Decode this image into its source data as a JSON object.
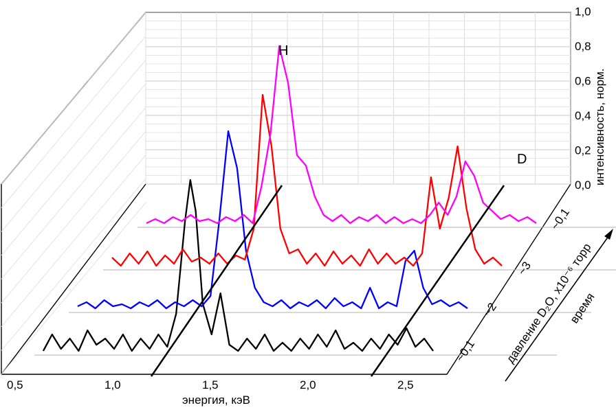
{
  "chart_data": {
    "type": "line",
    "subtype": "3d-waterfall",
    "xlabel": "энергия, кэВ",
    "x_ticks": [
      "0,5",
      "1,0",
      "1,5",
      "2,0",
      "2,5"
    ],
    "xlim": [
      0.5,
      2.75
    ],
    "zlabel": "интенсивность, норм.",
    "z_ticks": [
      "0,0",
      "0,2",
      "0,4",
      "0,6",
      "0,8",
      "1,0"
    ],
    "zlim": [
      0.0,
      1.0
    ],
    "depth_label": "давление D₂O, x10⁻⁶ торр",
    "depth_ticks": [
      "~0,1",
      "~2",
      "~3",
      "~0,1"
    ],
    "depth_arrow_label": "время",
    "grid": true,
    "annotations": [
      {
        "text": "H",
        "x": 1.56,
        "series": 3
      },
      {
        "text": "D",
        "x": 2.6,
        "series": 3
      }
    ],
    "series": [
      {
        "color": "#000000",
        "points": [
          [
            0.55,
            0.02
          ],
          [
            0.6,
            0.1
          ],
          [
            0.65,
            0.03
          ],
          [
            0.7,
            0.08
          ],
          [
            0.75,
            0.02
          ],
          [
            0.8,
            0.12
          ],
          [
            0.85,
            0.05
          ],
          [
            0.9,
            0.08
          ],
          [
            0.95,
            0.03
          ],
          [
            1.0,
            0.1
          ],
          [
            1.05,
            0.02
          ],
          [
            1.1,
            0.08
          ],
          [
            1.15,
            0.03
          ],
          [
            1.2,
            0.1
          ],
          [
            1.25,
            0.04
          ],
          [
            1.3,
            0.2
          ],
          [
            1.35,
            0.65
          ],
          [
            1.38,
            0.85
          ],
          [
            1.41,
            0.7
          ],
          [
            1.45,
            0.25
          ],
          [
            1.5,
            0.1
          ],
          [
            1.55,
            0.3
          ],
          [
            1.6,
            0.05
          ],
          [
            1.65,
            0.02
          ],
          [
            1.7,
            0.08
          ],
          [
            1.75,
            0.03
          ],
          [
            1.8,
            0.1
          ],
          [
            1.85,
            0.02
          ],
          [
            1.9,
            0.06
          ],
          [
            1.95,
            0.02
          ],
          [
            2.0,
            0.08
          ],
          [
            2.05,
            0.03
          ],
          [
            2.1,
            0.1
          ],
          [
            2.15,
            0.04
          ],
          [
            2.2,
            0.12
          ],
          [
            2.25,
            0.03
          ],
          [
            2.3,
            0.06
          ],
          [
            2.35,
            0.02
          ],
          [
            2.4,
            0.08
          ],
          [
            2.45,
            0.03
          ],
          [
            2.5,
            0.1
          ],
          [
            2.55,
            0.05
          ],
          [
            2.6,
            0.13
          ],
          [
            2.65,
            0.04
          ],
          [
            2.7,
            0.08
          ],
          [
            2.75,
            0.02
          ]
        ]
      },
      {
        "color": "#0000ff",
        "points": [
          [
            0.55,
            0.03
          ],
          [
            0.6,
            0.05
          ],
          [
            0.65,
            0.02
          ],
          [
            0.7,
            0.06
          ],
          [
            0.75,
            0.03
          ],
          [
            0.8,
            0.04
          ],
          [
            0.85,
            0.02
          ],
          [
            0.9,
            0.05
          ],
          [
            0.95,
            0.03
          ],
          [
            1.0,
            0.06
          ],
          [
            1.05,
            0.02
          ],
          [
            1.1,
            0.05
          ],
          [
            1.15,
            0.03
          ],
          [
            1.2,
            0.06
          ],
          [
            1.25,
            0.03
          ],
          [
            1.3,
            0.08
          ],
          [
            1.35,
            0.45
          ],
          [
            1.4,
            0.88
          ],
          [
            1.45,
            0.7
          ],
          [
            1.5,
            0.3
          ],
          [
            1.55,
            0.12
          ],
          [
            1.6,
            0.05
          ],
          [
            1.65,
            0.03
          ],
          [
            1.7,
            0.06
          ],
          [
            1.75,
            0.02
          ],
          [
            1.8,
            0.05
          ],
          [
            1.85,
            0.03
          ],
          [
            1.9,
            0.06
          ],
          [
            1.95,
            0.02
          ],
          [
            2.0,
            0.07
          ],
          [
            2.05,
            0.03
          ],
          [
            2.1,
            0.05
          ],
          [
            2.15,
            0.02
          ],
          [
            2.2,
            0.12
          ],
          [
            2.25,
            0.02
          ],
          [
            2.3,
            0.05
          ],
          [
            2.35,
            0.03
          ],
          [
            2.4,
            0.25
          ],
          [
            2.45,
            0.3
          ],
          [
            2.5,
            0.12
          ],
          [
            2.55,
            0.04
          ],
          [
            2.6,
            0.06
          ],
          [
            2.65,
            0.03
          ],
          [
            2.7,
            0.05
          ],
          [
            2.75,
            0.02
          ]
        ]
      },
      {
        "color": "#ff0000",
        "points": [
          [
            0.55,
            0.06
          ],
          [
            0.6,
            0.02
          ],
          [
            0.65,
            0.08
          ],
          [
            0.7,
            0.03
          ],
          [
            0.75,
            0.09
          ],
          [
            0.8,
            0.02
          ],
          [
            0.85,
            0.07
          ],
          [
            0.9,
            0.03
          ],
          [
            0.95,
            0.1
          ],
          [
            1.0,
            0.04
          ],
          [
            1.05,
            0.06
          ],
          [
            1.1,
            0.03
          ],
          [
            1.15,
            0.08
          ],
          [
            1.2,
            0.03
          ],
          [
            1.25,
            0.07
          ],
          [
            1.3,
            0.05
          ],
          [
            1.35,
            0.2
          ],
          [
            1.4,
            0.85
          ],
          [
            1.45,
            0.6
          ],
          [
            1.5,
            0.2
          ],
          [
            1.55,
            0.08
          ],
          [
            1.6,
            0.1
          ],
          [
            1.65,
            0.03
          ],
          [
            1.7,
            0.08
          ],
          [
            1.75,
            0.02
          ],
          [
            1.8,
            0.09
          ],
          [
            1.85,
            0.03
          ],
          [
            1.9,
            0.07
          ],
          [
            1.95,
            0.02
          ],
          [
            2.0,
            0.1
          ],
          [
            2.05,
            0.03
          ],
          [
            2.1,
            0.08
          ],
          [
            2.15,
            0.03
          ],
          [
            2.2,
            0.06
          ],
          [
            2.25,
            0.02
          ],
          [
            2.3,
            0.08
          ],
          [
            2.35,
            0.45
          ],
          [
            2.4,
            0.2
          ],
          [
            2.45,
            0.35
          ],
          [
            2.5,
            0.6
          ],
          [
            2.55,
            0.3
          ],
          [
            2.6,
            0.1
          ],
          [
            2.65,
            0.03
          ],
          [
            2.7,
            0.06
          ],
          [
            2.75,
            0.02
          ]
        ]
      },
      {
        "color": "#ff00ff",
        "points": [
          [
            0.55,
            0.02
          ],
          [
            0.6,
            0.04
          ],
          [
            0.65,
            0.02
          ],
          [
            0.7,
            0.05
          ],
          [
            0.75,
            0.03
          ],
          [
            0.8,
            0.06
          ],
          [
            0.85,
            0.03
          ],
          [
            0.9,
            0.04
          ],
          [
            0.95,
            0.02
          ],
          [
            1.0,
            0.05
          ],
          [
            1.05,
            0.03
          ],
          [
            1.1,
            0.06
          ],
          [
            1.15,
            0.02
          ],
          [
            1.2,
            0.2
          ],
          [
            1.25,
            0.45
          ],
          [
            1.3,
            0.88
          ],
          [
            1.35,
            0.7
          ],
          [
            1.4,
            0.35
          ],
          [
            1.45,
            0.3
          ],
          [
            1.5,
            0.15
          ],
          [
            1.55,
            0.06
          ],
          [
            1.6,
            0.03
          ],
          [
            1.65,
            0.06
          ],
          [
            1.7,
            0.02
          ],
          [
            1.75,
            0.05
          ],
          [
            1.8,
            0.03
          ],
          [
            1.85,
            0.06
          ],
          [
            1.9,
            0.02
          ],
          [
            1.95,
            0.05
          ],
          [
            2.0,
            0.02
          ],
          [
            2.05,
            0.04
          ],
          [
            2.1,
            0.02
          ],
          [
            2.15,
            0.06
          ],
          [
            2.2,
            0.12
          ],
          [
            2.25,
            0.06
          ],
          [
            2.3,
            0.15
          ],
          [
            2.35,
            0.32
          ],
          [
            2.4,
            0.25
          ],
          [
            2.45,
            0.12
          ],
          [
            2.5,
            0.08
          ],
          [
            2.55,
            0.04
          ],
          [
            2.6,
            0.06
          ],
          [
            2.65,
            0.03
          ],
          [
            2.7,
            0.05
          ],
          [
            2.75,
            0.02
          ]
        ]
      }
    ]
  }
}
